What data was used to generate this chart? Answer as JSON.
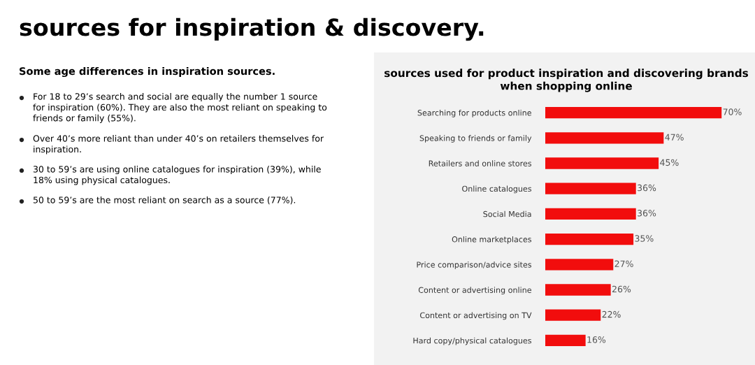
{
  "chart_data": {
    "type": "bar",
    "orientation": "horizontal",
    "title": "sources for inspiration & discovery.",
    "subtitle": "sources used for product inspiration and discovering brands\nwhen shopping online",
    "categories": [
      "Searching for products online",
      "Speaking to friends or family",
      "Retailers and online stores",
      "Online catalogues",
      "Social Media",
      "Online marketplaces",
      "Price comparison/advice sites",
      "Content or advertising online",
      "Content or advertising on TV",
      "Hard copy/physical catalogues"
    ],
    "values": [
      70,
      47,
      45,
      36,
      36,
      35,
      27,
      26,
      22,
      16
    ],
    "value_labels": [
      "70%",
      "47%",
      "45%",
      "36%",
      "36%",
      "35%",
      "27%",
      "26%",
      "22%",
      "16%"
    ],
    "color": "#f20d0d",
    "grid": false,
    "legend": false,
    "tick_labels": "y",
    "annotations": [
      "Some age differences in inspiration sources.",
      "For 18 to 29’s search and social are equally the number 1 source\nfor inspiration (60%). They are also the most reliant on speaking to\nfriends or family (55%).",
      "Over 40’s more reliant than under 40’s on retailers themselves for\ninspiration.",
      "30 to 59’s are using online catalogues for inspiration (39%), while\n18% using physical catalogues.",
      "50 to 59’s are the most reliant on search as a source (77%)."
    ]
  }
}
